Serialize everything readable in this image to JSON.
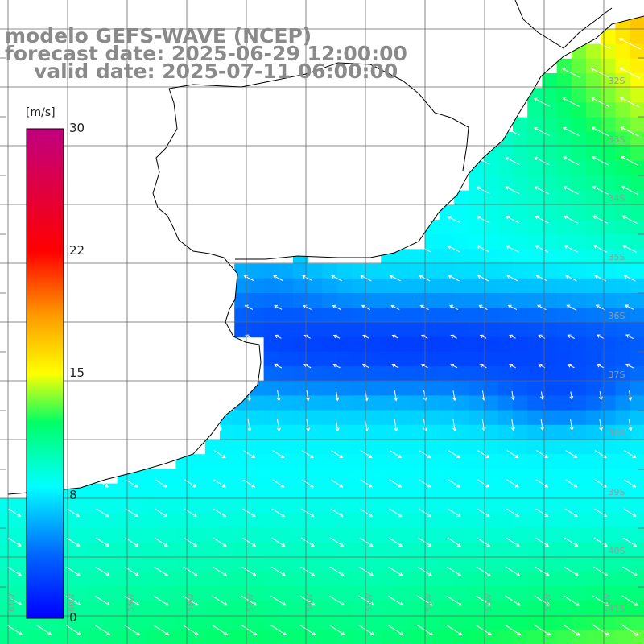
{
  "title": {
    "model": "modelo GEFS-WAVE (NCEP)",
    "forecast": "forecast date: 2025-06-29 12:00:00",
    "valid": "valid date: 2025-07-11 06:00:00"
  },
  "colorbar": {
    "units": "[m/s]",
    "ticks": [
      "30",
      "22",
      "15",
      "8",
      "0"
    ],
    "range": [
      0,
      30
    ],
    "colors": [
      "#0000ff",
      "#0090ff",
      "#00ffff",
      "#00ff60",
      "#ffff00",
      "#ff8000",
      "#ff0000",
      "#c00080"
    ]
  },
  "map": {
    "lat_labels": [
      "32S",
      "33S",
      "34S",
      "35S",
      "36S",
      "37S",
      "38S",
      "39S",
      "40S",
      "41S"
    ],
    "lon_labels": [
      "61W",
      "60W",
      "59W",
      "58W",
      "57W",
      "56W",
      "55W",
      "54W",
      "53W",
      "52W",
      "51W"
    ],
    "land_color": "#ffffff",
    "grid_color": "#666666",
    "coast_color": "#000000",
    "arrow_color": "#ffffff"
  }
}
